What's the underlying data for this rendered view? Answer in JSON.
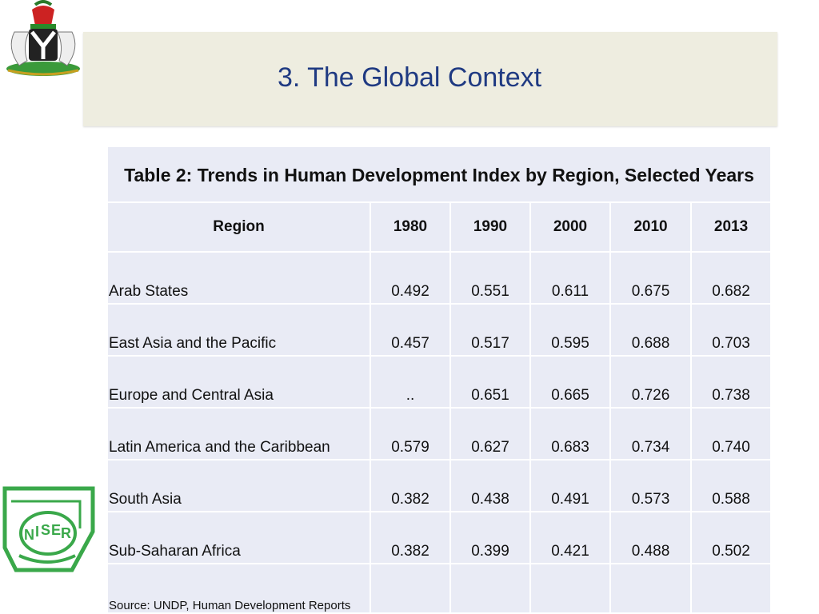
{
  "slide": {
    "title": "3. The Global Context"
  },
  "logos": {
    "top_left": "nigeria-coat-of-arms",
    "bottom_left": "NISER"
  },
  "table": {
    "caption": "Table 2: Trends in Human Development Index by Region, Selected Years",
    "columns": [
      "Region",
      "1980",
      "1990",
      "2000",
      "2010",
      "2013"
    ],
    "rows": [
      {
        "region": "Arab States",
        "values": [
          "0.492",
          "0.551",
          "0.611",
          "0.675",
          "0.682"
        ]
      },
      {
        "region": "East Asia and the Pacific",
        "values": [
          "0.457",
          "0.517",
          "0.595",
          "0.688",
          "0.703"
        ]
      },
      {
        "region": "Europe and Central Asia",
        "values": [
          "..",
          "0.651",
          "0.665",
          "0.726",
          "0.738"
        ]
      },
      {
        "region": "Latin America and the Caribbean",
        "values": [
          "0.579",
          "0.627",
          "0.683",
          "0.734",
          "0.740"
        ]
      },
      {
        "region": "South Asia",
        "values": [
          "0.382",
          "0.438",
          "0.491",
          "0.573",
          "0.588"
        ]
      },
      {
        "region": "Sub-Saharan Africa",
        "values": [
          "0.382",
          "0.399",
          "0.421",
          "0.488",
          "0.502"
        ]
      }
    ],
    "source": "Source: UNDP, Human Development Reports"
  }
}
